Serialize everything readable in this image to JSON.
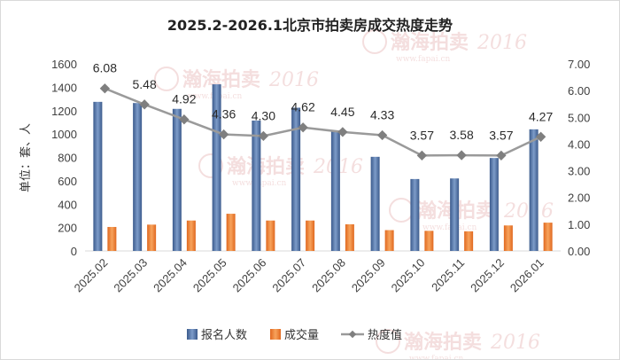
{
  "chart_data": {
    "type": "bar",
    "title": "2025.2-2026.1北京市拍卖房成交热度走势",
    "categories": [
      "2025.02",
      "2025.03",
      "2025.04",
      "2025.05",
      "2025.06",
      "2025.07",
      "2025.08",
      "2025.09",
      "2025.10",
      "2025.11",
      "2025.12",
      "2026.01"
    ],
    "series": [
      {
        "name": "报名人数",
        "kind": "bar",
        "axis": "left",
        "color": "#4a6a9c",
        "values": [
          1275,
          1265,
          1215,
          1425,
          1115,
          1225,
          1030,
          805,
          615,
          620,
          795,
          1040
        ]
      },
      {
        "name": "成交量",
        "kind": "bar",
        "axis": "left",
        "color": "#ed7d31",
        "values": [
          205,
          225,
          260,
          318,
          260,
          260,
          228,
          178,
          172,
          168,
          218,
          242
        ]
      },
      {
        "name": "热度值",
        "kind": "line",
        "axis": "right",
        "color": "#9a9a9a",
        "values": [
          6.08,
          5.48,
          4.92,
          4.36,
          4.3,
          4.62,
          4.45,
          4.33,
          3.57,
          3.58,
          3.57,
          4.27
        ],
        "labels": [
          "6.08",
          "5.48",
          "4.92",
          "4.36",
          "4.30",
          "4.62",
          "4.45",
          "4.33",
          "3.57",
          "3.58",
          "3.57",
          "4.27"
        ]
      }
    ],
    "ylabel": "单位：套、人",
    "ylim": [
      0,
      1600
    ],
    "yticks": [
      0,
      200,
      400,
      600,
      800,
      1000,
      1200,
      1400,
      1600
    ],
    "y2lim": [
      0,
      7
    ],
    "y2ticks": [
      "0.00",
      "1.00",
      "2.00",
      "3.00",
      "4.00",
      "5.00",
      "6.00",
      "7.00"
    ],
    "legend_position": "bottom",
    "grid": false
  },
  "watermark": {
    "brand": "瀚海拍卖",
    "since": "Since",
    "year": "2016",
    "url": "www.fapai.cn"
  }
}
